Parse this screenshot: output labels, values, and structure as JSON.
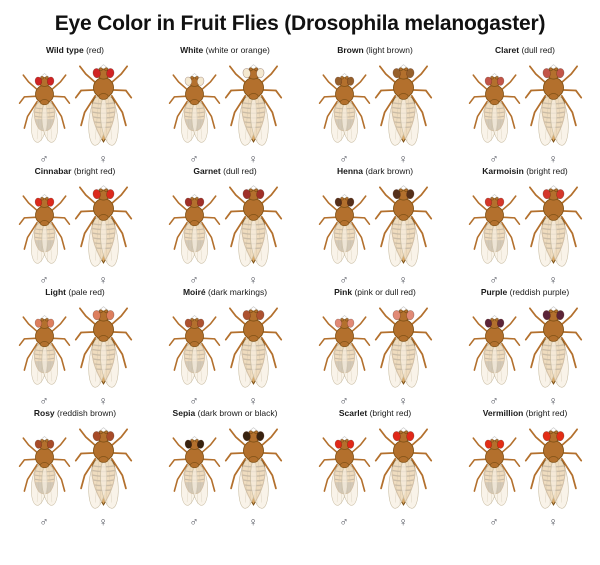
{
  "title": "Eye Color in Fruit Flies (Drosophila melanogaster)",
  "sex_symbols": {
    "male": "♂",
    "female": "♀"
  },
  "fly_colors": {
    "body": "#b3702d",
    "outline": "#7e5117",
    "abdomen": "#dcab69",
    "band": "#5a3c12",
    "male_tip": "#75654d",
    "wing": "#f6efe0",
    "wing_outline": "#c9bda3",
    "leg": "#b3702d",
    "bristle": "#c6c6c6",
    "symbol_color": "#4b4e58"
  },
  "variants": [
    {
      "name": "Wild type",
      "description": "(red)",
      "eye_color": "#cf2424"
    },
    {
      "name": "White",
      "description": "(white or orange)",
      "eye_color": "#f4e8d0"
    },
    {
      "name": "Brown",
      "description": "(light brown)",
      "eye_color": "#96602c"
    },
    {
      "name": "Claret",
      "description": "(dull red)",
      "eye_color": "#c25548"
    },
    {
      "name": "Cinnabar",
      "description": "(bright red)",
      "eye_color": "#db2a1c"
    },
    {
      "name": "Garnet",
      "description": "(dull red)",
      "eye_color": "#a03028"
    },
    {
      "name": "Henna",
      "description": "(dark brown)",
      "eye_color": "#56301a"
    },
    {
      "name": "Karmoisin",
      "description": "(bright red)",
      "eye_color": "#d4372a"
    },
    {
      "name": "Light",
      "description": "(pale red)",
      "eye_color": "#dd7f5e"
    },
    {
      "name": "Moiré",
      "description": "(dark markings)",
      "eye_color": "#ad5230"
    },
    {
      "name": "Pink",
      "description": "(pink or dull red)",
      "eye_color": "#e18a76"
    },
    {
      "name": "Purple",
      "description": "(reddish purple)",
      "eye_color": "#5c2438"
    },
    {
      "name": "Rosy",
      "description": "(reddish brown)",
      "eye_color": "#a74b28"
    },
    {
      "name": "Sepia",
      "description": "(dark brown or black)",
      "eye_color": "#38220f"
    },
    {
      "name": "Scarlet",
      "description": "(bright red)",
      "eye_color": "#e02818"
    },
    {
      "name": "Vermillion",
      "description": "(bright red)",
      "eye_color": "#e22d15"
    }
  ]
}
